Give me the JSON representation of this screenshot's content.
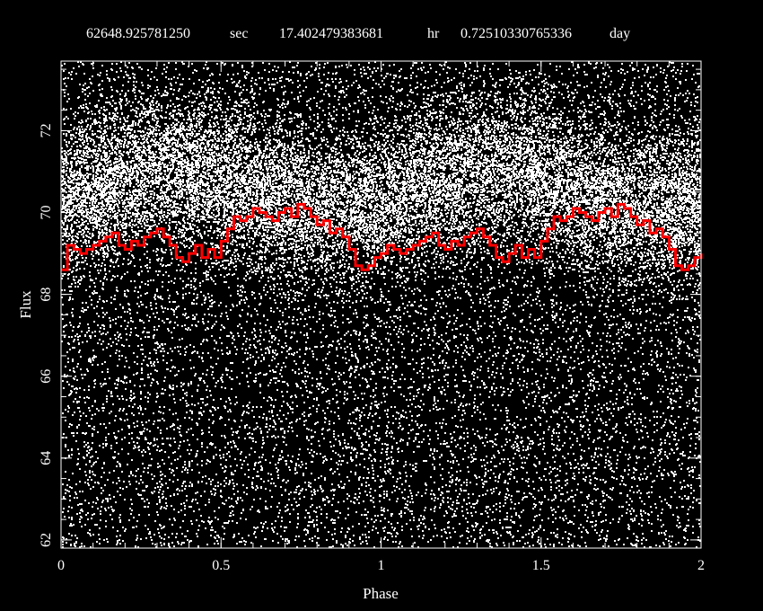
{
  "chart_data": {
    "type": "scatter",
    "title_parts": [
      {
        "value": "62648.925781250",
        "unit": "sec"
      },
      {
        "value": "17.402479383681",
        "unit": "hr"
      },
      {
        "value": "0.72510330765336",
        "unit": "day"
      }
    ],
    "xlabel": "Phase",
    "ylabel": "Flux",
    "xlim": [
      0,
      2
    ],
    "ylim": [
      61.8,
      73.7
    ],
    "x_ticks": [
      "0",
      "0.5",
      "1",
      "1.5",
      "2"
    ],
    "y_ticks": [
      "62",
      "64",
      "66",
      "68",
      "70",
      "72"
    ],
    "grid": false,
    "background_color": "#000000",
    "point_color": "#ffffff",
    "series": [
      {
        "type": "scatter",
        "color": "#ffffff",
        "description": "phase-folded flux samples, two cycles, densest near 69-72",
        "cloud": {
          "center_y": 70.6,
          "spread_y": 1.8,
          "y_min": 61.8,
          "y_max": 73.7
        }
      },
      {
        "type": "line",
        "step": true,
        "color": "#ff0000",
        "x": [
          0.0,
          0.02,
          0.04,
          0.06,
          0.08,
          0.1,
          0.12,
          0.14,
          0.16,
          0.18,
          0.2,
          0.22,
          0.24,
          0.26,
          0.28,
          0.3,
          0.32,
          0.34,
          0.36,
          0.38,
          0.4,
          0.42,
          0.44,
          0.46,
          0.48,
          0.5,
          0.52,
          0.54,
          0.56,
          0.58,
          0.6,
          0.62,
          0.64,
          0.66,
          0.68,
          0.7,
          0.72,
          0.74,
          0.76,
          0.78,
          0.8,
          0.82,
          0.84,
          0.86,
          0.88,
          0.9,
          0.92,
          0.94,
          0.96,
          0.98,
          1.0
        ],
        "y": [
          68.6,
          69.2,
          69.1,
          69.0,
          69.1,
          69.2,
          69.3,
          69.4,
          69.5,
          69.2,
          69.1,
          69.3,
          69.2,
          69.4,
          69.5,
          69.6,
          69.4,
          69.2,
          68.9,
          68.8,
          69.0,
          69.2,
          68.9,
          69.1,
          68.9,
          69.3,
          69.6,
          69.9,
          69.8,
          69.9,
          70.1,
          70.0,
          69.9,
          69.8,
          70.0,
          70.1,
          69.9,
          70.2,
          70.1,
          69.9,
          69.7,
          69.8,
          69.5,
          69.6,
          69.4,
          69.1,
          68.7,
          68.6,
          68.7,
          68.9,
          69.0
        ]
      }
    ]
  }
}
